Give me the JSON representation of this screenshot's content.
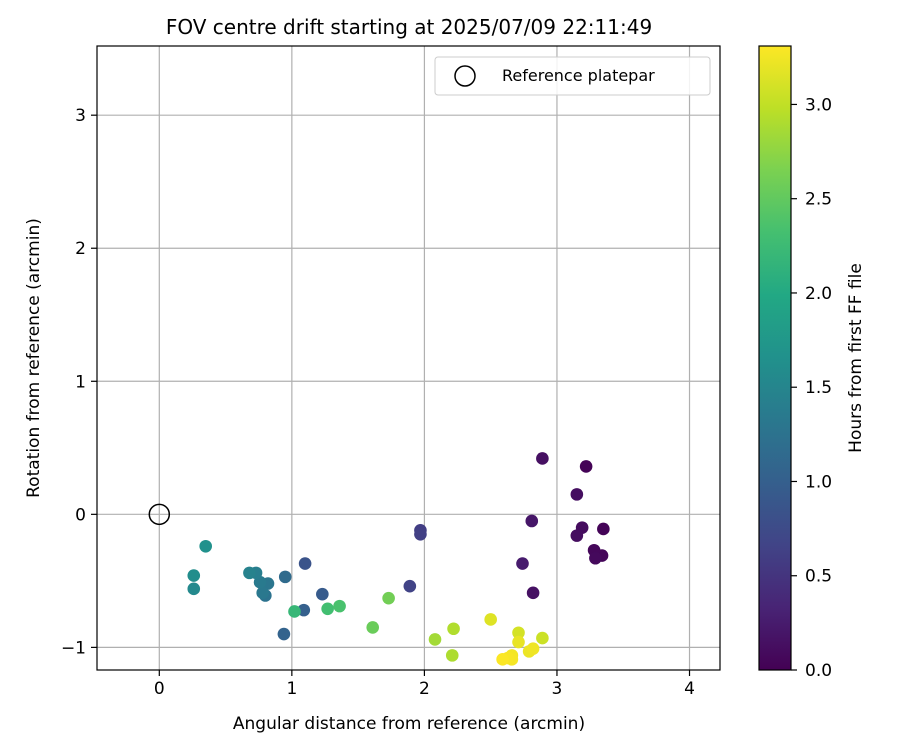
{
  "chart_data": {
    "type": "scatter",
    "title": "FOV centre drift starting at 2025/07/09 22:11:49",
    "xlabel": "Angular distance from reference (arcmin)",
    "ylabel": "Rotation from reference (arcmin)",
    "xlim": [
      -0.47,
      4.23
    ],
    "ylim": [
      -1.17,
      3.52
    ],
    "xticks": [
      0,
      1,
      2,
      3,
      4
    ],
    "yticks": [
      -1,
      0,
      1,
      2,
      3
    ],
    "grid": true,
    "colormap": "viridis",
    "colorbar": {
      "label": "Hours from first FF file",
      "range": [
        0.0,
        3.31
      ],
      "ticks": [
        "0.0",
        "0.5",
        "1.0",
        "1.5",
        "2.0",
        "2.5",
        "3.0"
      ]
    },
    "legend": {
      "position": "top-right",
      "entries": [
        {
          "label": "Reference platepar",
          "marker": "open-circle"
        }
      ]
    },
    "reference_point": {
      "x": 0,
      "y": 0
    },
    "points": [
      {
        "x": 3.22,
        "y": 0.36,
        "hours": 0.02
      },
      {
        "x": 3.35,
        "y": -0.11,
        "hours": 0.03
      },
      {
        "x": 3.34,
        "y": -0.31,
        "hours": 0.05
      },
      {
        "x": 3.28,
        "y": -0.27,
        "hours": 0.06
      },
      {
        "x": 3.29,
        "y": -0.33,
        "hours": 0.08
      },
      {
        "x": 3.19,
        "y": -0.1,
        "hours": 0.1
      },
      {
        "x": 3.15,
        "y": -0.16,
        "hours": 0.11
      },
      {
        "x": 3.15,
        "y": 0.15,
        "hours": 0.12
      },
      {
        "x": 2.89,
        "y": 0.42,
        "hours": 0.14
      },
      {
        "x": 2.82,
        "y": -0.59,
        "hours": 0.15
      },
      {
        "x": 2.81,
        "y": -0.05,
        "hours": 0.2
      },
      {
        "x": 2.74,
        "y": -0.37,
        "hours": 0.25
      },
      {
        "x": 1.97,
        "y": -0.12,
        "hours": 0.6
      },
      {
        "x": 1.97,
        "y": -0.15,
        "hours": 0.62
      },
      {
        "x": 1.89,
        "y": -0.54,
        "hours": 0.65
      },
      {
        "x": 1.1,
        "y": -0.37,
        "hours": 0.85
      },
      {
        "x": 1.23,
        "y": -0.6,
        "hours": 0.95
      },
      {
        "x": 0.94,
        "y": -0.9,
        "hours": 1.05
      },
      {
        "x": 1.09,
        "y": -0.72,
        "hours": 1.0
      },
      {
        "x": 0.95,
        "y": -0.47,
        "hours": 1.15
      },
      {
        "x": 0.8,
        "y": -0.61,
        "hours": 1.25
      },
      {
        "x": 0.82,
        "y": -0.52,
        "hours": 1.3
      },
      {
        "x": 0.78,
        "y": -0.59,
        "hours": 1.32
      },
      {
        "x": 0.76,
        "y": -0.51,
        "hours": 1.35
      },
      {
        "x": 0.73,
        "y": -0.44,
        "hours": 1.4
      },
      {
        "x": 0.68,
        "y": -0.44,
        "hours": 1.45
      },
      {
        "x": 0.26,
        "y": -0.56,
        "hours": 1.55
      },
      {
        "x": 0.26,
        "y": -0.46,
        "hours": 1.6
      },
      {
        "x": 0.35,
        "y": -0.24,
        "hours": 1.65
      },
      {
        "x": 1.02,
        "y": -0.73,
        "hours": 2.2
      },
      {
        "x": 1.27,
        "y": -0.71,
        "hours": 2.3
      },
      {
        "x": 1.36,
        "y": -0.69,
        "hours": 2.35
      },
      {
        "x": 1.61,
        "y": -0.85,
        "hours": 2.55
      },
      {
        "x": 1.73,
        "y": -0.63,
        "hours": 2.6
      },
      {
        "x": 2.08,
        "y": -0.94,
        "hours": 2.85
      },
      {
        "x": 2.21,
        "y": -1.06,
        "hours": 2.9
      },
      {
        "x": 2.22,
        "y": -0.86,
        "hours": 2.92
      },
      {
        "x": 2.89,
        "y": -0.93,
        "hours": 3.05
      },
      {
        "x": 2.71,
        "y": -0.89,
        "hours": 3.1
      },
      {
        "x": 2.5,
        "y": -0.79,
        "hours": 3.15
      },
      {
        "x": 2.71,
        "y": -0.96,
        "hours": 3.2
      },
      {
        "x": 2.79,
        "y": -1.03,
        "hours": 3.22
      },
      {
        "x": 2.82,
        "y": -1.01,
        "hours": 3.24
      },
      {
        "x": 2.66,
        "y": -1.06,
        "hours": 3.26
      },
      {
        "x": 2.66,
        "y": -1.09,
        "hours": 3.27
      },
      {
        "x": 2.63,
        "y": -1.08,
        "hours": 3.28
      },
      {
        "x": 2.59,
        "y": -1.09,
        "hours": 3.3
      }
    ]
  }
}
